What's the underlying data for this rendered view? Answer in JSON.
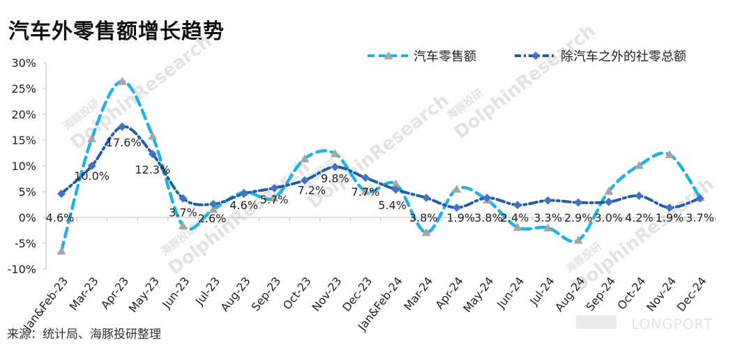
{
  "title": "汽车外零售额增长趋势",
  "source": "来源：统计局、海豚投研整理",
  "watermark": {
    "brand": "DolphinResearch",
    "cn": "海豚投研",
    "logo": "LONGPORT"
  },
  "chart_data": {
    "type": "line",
    "categories": [
      "Jan&Feb-23",
      "Mar-23",
      "Apr-23",
      "May-23",
      "Jun-23",
      "Jul-23",
      "Aug-23",
      "Sep-23",
      "Oct-23",
      "Nov-23",
      "Dec-23",
      "Jan&Feb-24",
      "Mar-24",
      "Apr-24",
      "May-24",
      "Jun-24",
      "Jul-24",
      "Aug-24",
      "Sep-24",
      "Oct-24",
      "Nov-24",
      "Dec-24"
    ],
    "ylim": [
      -10,
      30
    ],
    "yticks": [
      -10,
      -5,
      0,
      5,
      10,
      15,
      20,
      25,
      30
    ],
    "ytick_labels": [
      "-10%",
      "-5%",
      "0%",
      "5%",
      "10%",
      "15%",
      "20%",
      "25%",
      "30%"
    ],
    "grid": false,
    "legend_position": "top-right",
    "series": [
      {
        "name": "汽车零售额",
        "color": "#1fb2e6",
        "marker": "triangle",
        "marker_color": "#a6a6a6",
        "values": [
          -6.5,
          15.3,
          26.4,
          15.8,
          -1.6,
          1.6,
          4.9,
          3.8,
          11.4,
          12.4,
          5.1,
          6.5,
          -2.9,
          5.5,
          3.4,
          -1.9,
          -2.0,
          -4.4,
          5.1,
          10.1,
          12.2,
          3.9
        ],
        "data_labels": null
      },
      {
        "name": "除汽车之外的社零总额",
        "color": "#1f5ea8",
        "marker": "diamond",
        "marker_color": "#4472c4",
        "values": [
          4.6,
          10.0,
          17.6,
          12.3,
          3.7,
          2.6,
          4.6,
          5.7,
          7.2,
          9.8,
          7.7,
          5.4,
          3.8,
          1.9,
          3.8,
          2.4,
          3.3,
          2.9,
          3.0,
          4.2,
          1.9,
          3.7
        ],
        "data_labels": [
          "4.6%",
          "10.0%",
          "17.6%",
          "12.3%",
          "3.7%",
          "2.6%",
          "4.6%",
          "5.7%",
          "7.2%",
          "9.8%",
          "7.7%",
          "5.4%",
          "3.8%",
          "1.9%",
          "3.8%",
          "2.4%",
          "3.3%",
          "2.9%",
          "3.0%",
          "4.2%",
          "1.9%",
          "3.7%"
        ]
      }
    ]
  }
}
